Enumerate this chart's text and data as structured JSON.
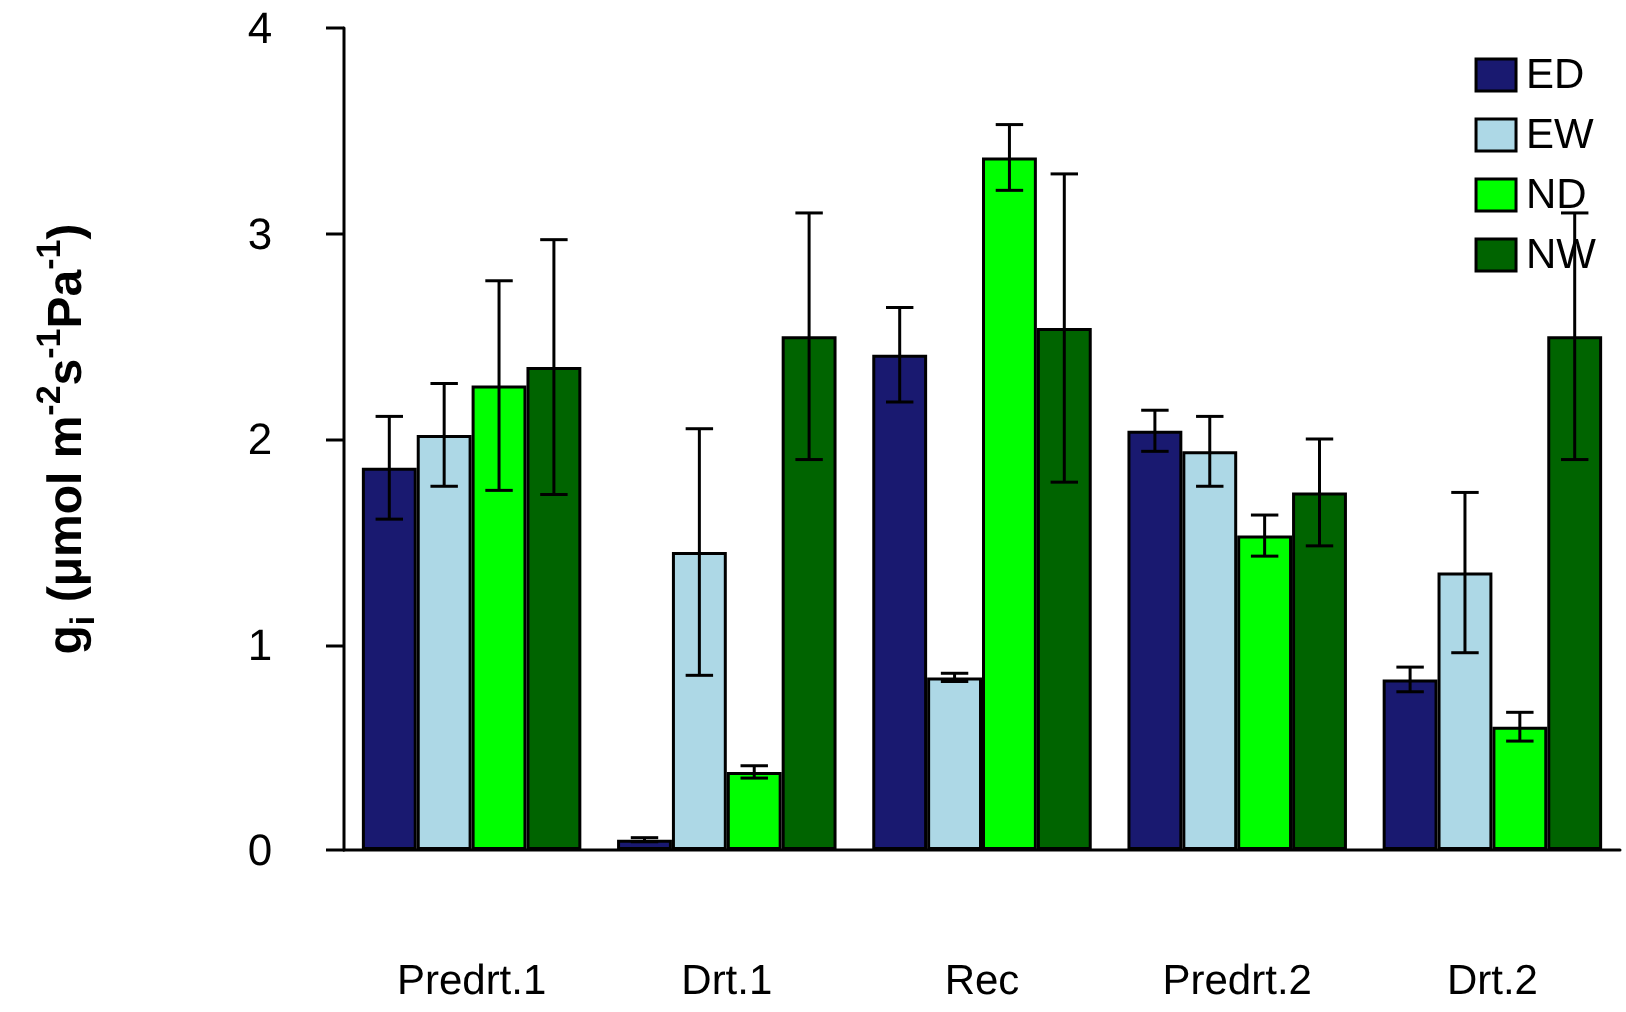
{
  "chart_data": {
    "type": "bar",
    "ylabel": "g$_{i}$ (μmol m$^{-2}$s$^{-1}$Pa$^{-1}$)",
    "categories": [
      "Predrt.1",
      "Drt.1",
      "Rec",
      "Predrt.2",
      "Drt.2"
    ],
    "series": [
      {
        "name": "ED",
        "color": "#191970",
        "values": [
          1.86,
          0.05,
          2.41,
          2.04,
          0.83
        ],
        "errors": [
          0.25,
          0.01,
          0.23,
          0.1,
          0.06
        ]
      },
      {
        "name": "EW",
        "color": "#add8e6",
        "values": [
          2.02,
          1.45,
          0.84,
          1.94,
          1.35
        ],
        "errors": [
          0.25,
          0.6,
          0.02,
          0.17,
          0.39
        ]
      },
      {
        "name": "ND",
        "color": "#00ff00",
        "values": [
          2.26,
          0.38,
          3.37,
          1.53,
          0.6
        ],
        "errors": [
          0.51,
          0.03,
          0.16,
          0.1,
          0.07
        ]
      },
      {
        "name": "NW",
        "color": "#006400",
        "values": [
          2.35,
          2.5,
          2.54,
          1.74,
          2.5
        ],
        "errors": [
          0.62,
          0.6,
          0.75,
          0.26,
          0.6
        ]
      }
    ],
    "ylim": [
      0,
      4
    ],
    "yticks": [
      0,
      1,
      2,
      3,
      4
    ],
    "grid": false,
    "legend": "top right"
  }
}
